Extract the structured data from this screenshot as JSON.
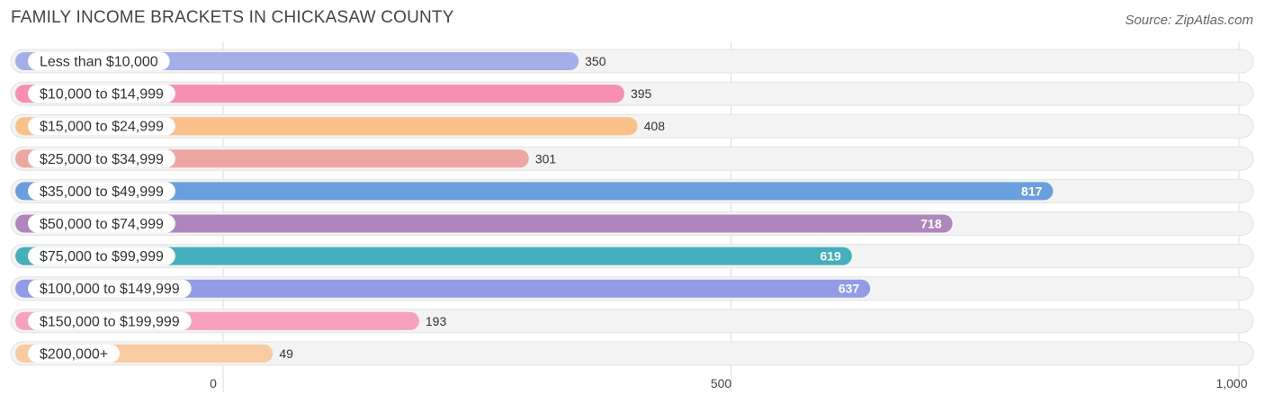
{
  "header": {
    "title": "FAMILY INCOME BRACKETS IN CHICKASAW COUNTY",
    "source": "Source: ZipAtlas.com"
  },
  "chart_data": {
    "type": "bar",
    "orientation": "horizontal",
    "title": "FAMILY INCOME BRACKETS IN CHICKASAW COUNTY",
    "categories": [
      "Less than $10,000",
      "$10,000 to $14,999",
      "$15,000 to $24,999",
      "$25,000 to $34,999",
      "$35,000 to $49,999",
      "$50,000 to $74,999",
      "$75,000 to $99,999",
      "$100,000 to $149,999",
      "$150,000 to $199,999",
      "$200,000+"
    ],
    "values": [
      350,
      395,
      408,
      301,
      817,
      718,
      619,
      637,
      193,
      49
    ],
    "value_labels": [
      "350",
      "395",
      "408",
      "301",
      "817",
      "718",
      "619",
      "637",
      "193",
      "49"
    ],
    "colors": [
      "#a4aee8",
      "#f68fb0",
      "#f9c08a",
      "#eea6a2",
      "#6a9fde",
      "#ae86bb",
      "#43b0bb",
      "#929be6",
      "#f7a0bf",
      "#f9cba1"
    ],
    "xlim": [
      0,
      1000
    ],
    "xticks": [
      0,
      500,
      1000
    ],
    "xtick_labels": [
      "0",
      "500",
      "1,000"
    ],
    "xlabel": "",
    "ylabel": "",
    "grid": true
  }
}
